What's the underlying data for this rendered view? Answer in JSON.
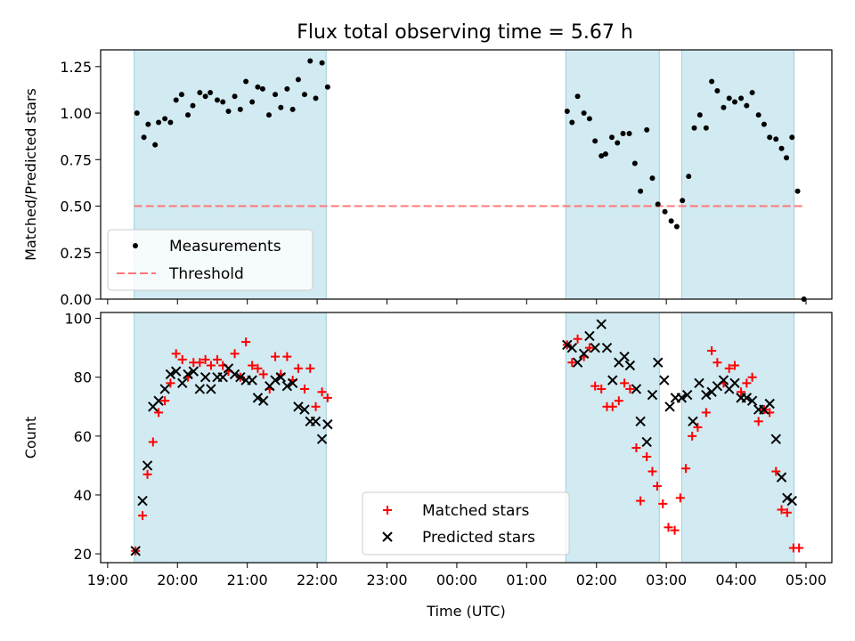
{
  "title": "Flux total observing time = 5.67 h",
  "chart_data": [
    {
      "type": "scatter",
      "ylabel": "Matched/Predicted stars",
      "xlabel": "",
      "ylim": [
        0,
        1.34
      ],
      "yticks": [
        "0.00",
        "0.25",
        "0.50",
        "0.75",
        "1.00",
        "1.25"
      ],
      "legend_position": "lower-left",
      "threshold": 0.5,
      "threshold_color": "#ff7777",
      "point_color": "#000000",
      "shaded_color": "#add8e6",
      "legend": [
        "Measurements",
        "Threshold"
      ],
      "points": [
        [
          19.42,
          1.0
        ],
        [
          19.52,
          0.87
        ],
        [
          19.58,
          0.94
        ],
        [
          19.68,
          0.83
        ],
        [
          19.73,
          0.95
        ],
        [
          19.82,
          0.97
        ],
        [
          19.9,
          0.95
        ],
        [
          19.98,
          1.07
        ],
        [
          20.06,
          1.1
        ],
        [
          20.15,
          0.99
        ],
        [
          20.22,
          1.04
        ],
        [
          20.32,
          1.11
        ],
        [
          20.4,
          1.09
        ],
        [
          20.47,
          1.11
        ],
        [
          20.57,
          1.07
        ],
        [
          20.65,
          1.06
        ],
        [
          20.73,
          1.01
        ],
        [
          20.82,
          1.09
        ],
        [
          20.9,
          1.02
        ],
        [
          20.98,
          1.17
        ],
        [
          21.07,
          1.06
        ],
        [
          21.15,
          1.14
        ],
        [
          21.22,
          1.13
        ],
        [
          21.31,
          0.99
        ],
        [
          21.4,
          1.1
        ],
        [
          21.48,
          1.03
        ],
        [
          21.57,
          1.13
        ],
        [
          21.65,
          1.02
        ],
        [
          21.73,
          1.18
        ],
        [
          21.82,
          1.1
        ],
        [
          21.9,
          1.28
        ],
        [
          21.98,
          1.08
        ],
        [
          22.07,
          1.27
        ],
        [
          22.15,
          1.14
        ],
        [
          25.58,
          1.01
        ],
        [
          25.65,
          0.95
        ],
        [
          25.73,
          1.09
        ],
        [
          25.82,
          1.0
        ],
        [
          25.9,
          0.97
        ],
        [
          25.98,
          0.85
        ],
        [
          26.07,
          0.77
        ],
        [
          26.13,
          0.78
        ],
        [
          26.22,
          0.87
        ],
        [
          26.3,
          0.84
        ],
        [
          26.38,
          0.89
        ],
        [
          26.47,
          0.89
        ],
        [
          26.55,
          0.73
        ],
        [
          26.63,
          0.58
        ],
        [
          26.72,
          0.91
        ],
        [
          26.8,
          0.65
        ],
        [
          26.88,
          0.51
        ],
        [
          26.98,
          0.47
        ],
        [
          27.07,
          0.42
        ],
        [
          27.15,
          0.39
        ],
        [
          27.23,
          0.53
        ],
        [
          27.32,
          0.66
        ],
        [
          27.4,
          0.92
        ],
        [
          27.48,
          0.99
        ],
        [
          27.57,
          0.92
        ],
        [
          27.65,
          1.17
        ],
        [
          27.73,
          1.12
        ],
        [
          27.82,
          1.03
        ],
        [
          27.9,
          1.08
        ],
        [
          27.98,
          1.06
        ],
        [
          28.07,
          1.08
        ],
        [
          28.15,
          1.04
        ],
        [
          28.23,
          1.11
        ],
        [
          28.32,
          0.99
        ],
        [
          28.4,
          0.94
        ],
        [
          28.48,
          0.87
        ],
        [
          28.57,
          0.86
        ],
        [
          28.65,
          0.81
        ],
        [
          28.72,
          0.76
        ],
        [
          28.8,
          0.87
        ],
        [
          28.88,
          0.58
        ],
        [
          28.97,
          0.0
        ]
      ]
    },
    {
      "type": "scatter",
      "ylabel": "Count",
      "xlabel": "Time (UTC)",
      "ylim": [
        17,
        102
      ],
      "yticks": [
        "20",
        "40",
        "60",
        "80",
        "100"
      ],
      "legend_position": "lower-center",
      "legend": [
        "Matched stars",
        "Predicted stars"
      ],
      "series": [
        {
          "name": "Matched stars",
          "color": "#ff0000",
          "marker": "+",
          "points": [
            [
              19.4,
              21
            ],
            [
              19.5,
              33
            ],
            [
              19.57,
              47
            ],
            [
              19.65,
              58
            ],
            [
              19.73,
              68
            ],
            [
              19.82,
              72
            ],
            [
              19.9,
              78
            ],
            [
              19.98,
              88
            ],
            [
              20.07,
              86
            ],
            [
              20.15,
              80
            ],
            [
              20.23,
              85
            ],
            [
              20.32,
              85
            ],
            [
              20.4,
              86
            ],
            [
              20.48,
              84
            ],
            [
              20.57,
              86
            ],
            [
              20.65,
              84
            ],
            [
              20.73,
              82
            ],
            [
              20.82,
              88
            ],
            [
              20.9,
              80
            ],
            [
              20.98,
              92
            ],
            [
              21.07,
              84
            ],
            [
              21.15,
              83
            ],
            [
              21.23,
              81
            ],
            [
              21.32,
              76
            ],
            [
              21.4,
              87
            ],
            [
              21.48,
              81
            ],
            [
              21.57,
              87
            ],
            [
              21.65,
              79
            ],
            [
              21.73,
              83
            ],
            [
              21.82,
              76
            ],
            [
              21.9,
              83
            ],
            [
              21.98,
              70
            ],
            [
              22.07,
              75
            ],
            [
              22.15,
              73
            ],
            [
              25.58,
              91
            ],
            [
              25.65,
              85
            ],
            [
              25.73,
              93
            ],
            [
              25.82,
              87
            ],
            [
              25.9,
              90
            ],
            [
              25.98,
              77
            ],
            [
              26.07,
              76
            ],
            [
              26.15,
              70
            ],
            [
              26.23,
              70
            ],
            [
              26.32,
              72
            ],
            [
              26.4,
              78
            ],
            [
              26.48,
              76
            ],
            [
              26.57,
              56
            ],
            [
              26.63,
              38
            ],
            [
              26.72,
              53
            ],
            [
              26.8,
              48
            ],
            [
              26.87,
              43
            ],
            [
              26.95,
              37
            ],
            [
              27.03,
              29
            ],
            [
              27.12,
              28
            ],
            [
              27.2,
              39
            ],
            [
              27.28,
              49
            ],
            [
              27.37,
              60
            ],
            [
              27.45,
              63
            ],
            [
              27.57,
              68
            ],
            [
              27.65,
              89
            ],
            [
              27.73,
              85
            ],
            [
              27.82,
              78
            ],
            [
              27.9,
              83
            ],
            [
              27.98,
              84
            ],
            [
              28.07,
              75
            ],
            [
              28.15,
              78
            ],
            [
              28.23,
              80
            ],
            [
              28.32,
              65
            ],
            [
              28.4,
              69
            ],
            [
              28.48,
              68
            ],
            [
              28.57,
              48
            ],
            [
              28.65,
              35
            ],
            [
              28.73,
              34
            ],
            [
              28.82,
              22
            ],
            [
              28.9,
              22
            ]
          ]
        },
        {
          "name": "Predicted stars",
          "color": "#000000",
          "marker": "x",
          "points": [
            [
              19.4,
              21
            ],
            [
              19.5,
              38
            ],
            [
              19.57,
              50
            ],
            [
              19.65,
              70
            ],
            [
              19.73,
              72
            ],
            [
              19.82,
              76
            ],
            [
              19.9,
              81
            ],
            [
              19.98,
              82
            ],
            [
              20.07,
              78
            ],
            [
              20.15,
              81
            ],
            [
              20.23,
              82
            ],
            [
              20.32,
              76
            ],
            [
              20.4,
              80
            ],
            [
              20.48,
              76
            ],
            [
              20.57,
              80
            ],
            [
              20.65,
              80
            ],
            [
              20.73,
              83
            ],
            [
              20.82,
              81
            ],
            [
              20.9,
              80
            ],
            [
              20.98,
              79
            ],
            [
              21.07,
              79
            ],
            [
              21.15,
              73
            ],
            [
              21.23,
              72
            ],
            [
              21.32,
              77
            ],
            [
              21.4,
              79
            ],
            [
              21.48,
              80
            ],
            [
              21.57,
              77
            ],
            [
              21.65,
              78
            ],
            [
              21.73,
              70
            ],
            [
              21.82,
              69
            ],
            [
              21.9,
              65
            ],
            [
              21.98,
              65
            ],
            [
              22.07,
              59
            ],
            [
              22.15,
              64
            ],
            [
              25.58,
              91
            ],
            [
              25.65,
              90
            ],
            [
              25.73,
              85
            ],
            [
              25.82,
              88
            ],
            [
              25.9,
              94
            ],
            [
              25.98,
              90
            ],
            [
              26.07,
              98
            ],
            [
              26.15,
              90
            ],
            [
              26.23,
              79
            ],
            [
              26.32,
              85
            ],
            [
              26.4,
              87
            ],
            [
              26.48,
              84
            ],
            [
              26.57,
              76
            ],
            [
              26.63,
              65
            ],
            [
              26.72,
              58
            ],
            [
              26.8,
              74
            ],
            [
              26.88,
              85
            ],
            [
              26.97,
              79
            ],
            [
              27.05,
              70
            ],
            [
              27.13,
              73
            ],
            [
              27.22,
              73
            ],
            [
              27.3,
              74
            ],
            [
              27.38,
              65
            ],
            [
              27.47,
              78
            ],
            [
              27.57,
              74
            ],
            [
              27.65,
              75
            ],
            [
              27.73,
              77
            ],
            [
              27.82,
              79
            ],
            [
              27.9,
              76
            ],
            [
              27.98,
              78
            ],
            [
              28.07,
              73
            ],
            [
              28.15,
              73
            ],
            [
              28.23,
              72
            ],
            [
              28.32,
              69
            ],
            [
              28.4,
              69
            ],
            [
              28.48,
              71
            ],
            [
              28.57,
              59
            ],
            [
              28.65,
              46
            ],
            [
              28.73,
              39
            ],
            [
              28.8,
              38
            ]
          ]
        }
      ]
    }
  ],
  "shaded_intervals": [
    [
      19.38,
      22.13
    ],
    [
      25.56,
      26.9
    ],
    [
      27.22,
      28.83
    ]
  ],
  "xlim": [
    18.9,
    29.37
  ],
  "xticks": [
    {
      "value": 19,
      "label": "19:00"
    },
    {
      "value": 20,
      "label": "20:00"
    },
    {
      "value": 21,
      "label": "21:00"
    },
    {
      "value": 22,
      "label": "22:00"
    },
    {
      "value": 23,
      "label": "23:00"
    },
    {
      "value": 24,
      "label": "00:00"
    },
    {
      "value": 25,
      "label": "01:00"
    },
    {
      "value": 26,
      "label": "02:00"
    },
    {
      "value": 27,
      "label": "03:00"
    },
    {
      "value": 28,
      "label": "04:00"
    },
    {
      "value": 29,
      "label": "05:00"
    }
  ]
}
